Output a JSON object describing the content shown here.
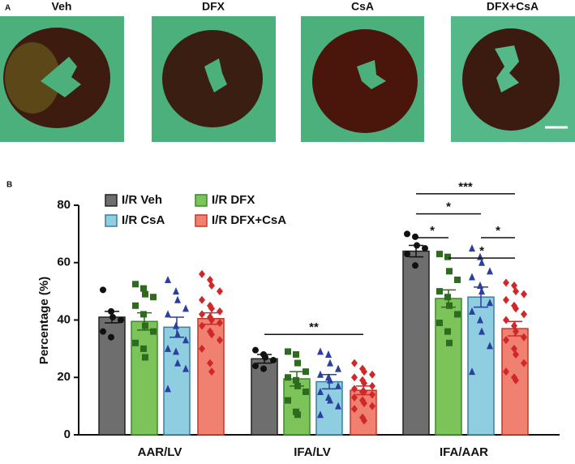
{
  "panel_a": {
    "label": "A",
    "images": [
      "Veh",
      "DFX",
      "CsA",
      "DFX+CsA"
    ]
  },
  "chart_data": {
    "type": "bar",
    "panel_label": "B",
    "ylabel": "Percentage (%)",
    "categories": [
      "AAR/LV",
      "IFA/LV",
      "IFA/AAR"
    ],
    "ylim": [
      0,
      80
    ],
    "yticks": [
      0,
      20,
      40,
      60,
      80
    ],
    "legend": "upper left",
    "series": [
      {
        "name": "I/R Veh",
        "color": "#6e6e6e",
        "edge_color": "#222222",
        "point_color": "#111111",
        "marker": "circle",
        "values": [
          41,
          26.5,
          64
        ],
        "errors": [
          2,
          1.5,
          2
        ],
        "points": [
          [
            50.5,
            43,
            41,
            40,
            36,
            34
          ],
          [
            29.5,
            28,
            27,
            26,
            24,
            23
          ],
          [
            70,
            69,
            66,
            65,
            63,
            59
          ]
        ]
      },
      {
        "name": "I/R DFX",
        "color": "#7cc45a",
        "edge_color": "#3a8a2a",
        "point_color": "#2e6b1e",
        "marker": "square",
        "values": [
          39.5,
          19.5,
          47.5
        ],
        "errors": [
          3,
          2.5,
          3
        ],
        "points": [
          [
            52.5,
            51,
            49,
            48,
            45,
            42,
            38,
            36,
            32,
            30,
            27
          ],
          [
            29,
            28,
            25,
            22,
            20,
            19,
            17,
            15,
            12,
            8,
            7
          ],
          [
            63,
            62,
            57,
            54,
            50,
            48,
            45,
            42,
            39,
            36,
            32
          ]
        ]
      },
      {
        "name": "I/R CsA",
        "color": "#8fcde0",
        "edge_color": "#3a7fa0",
        "point_color": "#2b3f9e",
        "marker": "triangle",
        "values": [
          37.5,
          18.5,
          48
        ],
        "errors": [
          3.5,
          2.5,
          3.5
        ],
        "points": [
          [
            54,
            50,
            47,
            44,
            42,
            38,
            35,
            33,
            30,
            29,
            25,
            23,
            16
          ],
          [
            29,
            28,
            25,
            23,
            21,
            20,
            19,
            17,
            15,
            13,
            12,
            10,
            7
          ],
          [
            65,
            62,
            60,
            57,
            55,
            52,
            50,
            46,
            43,
            40,
            36,
            31,
            22
          ]
        ]
      },
      {
        "name": "I/R DFX+CsA",
        "color": "#f08070",
        "edge_color": "#c0392b",
        "point_color": "#d0282a",
        "marker": "diamond",
        "values": [
          40.5,
          15.5,
          37
        ],
        "errors": [
          2,
          1.5,
          2.5
        ],
        "points": [
          [
            56,
            54,
            52,
            50,
            47,
            45,
            44,
            43,
            42,
            41,
            40,
            39,
            38,
            36,
            35,
            33,
            30,
            25,
            22
          ],
          [
            25,
            23,
            22,
            21,
            20,
            19,
            18,
            17,
            16,
            15,
            15,
            14,
            13,
            12,
            11,
            10,
            9,
            6,
            5
          ],
          [
            53,
            52,
            50,
            49,
            47,
            45,
            44,
            42,
            40,
            38,
            36,
            34,
            33,
            30,
            28,
            25,
            22,
            20,
            19
          ]
        ]
      }
    ],
    "annotations": [
      {
        "text": "**",
        "category": 1,
        "from": 0,
        "to": 3,
        "y": 35
      },
      {
        "text": "***",
        "category": 2,
        "from": 0,
        "to": 3,
        "y": 84
      },
      {
        "text": "*",
        "category": 2,
        "from": 0,
        "to": 2,
        "y": 77
      },
      {
        "text": "*",
        "category": 2,
        "from": 0,
        "to": 1,
        "y": 68.7
      },
      {
        "text": "*",
        "category": 2,
        "from": 2,
        "to": 3,
        "y": 68.7
      },
      {
        "text": "*",
        "category": 2,
        "from": 1,
        "to": 3,
        "y": 61.6
      }
    ]
  }
}
